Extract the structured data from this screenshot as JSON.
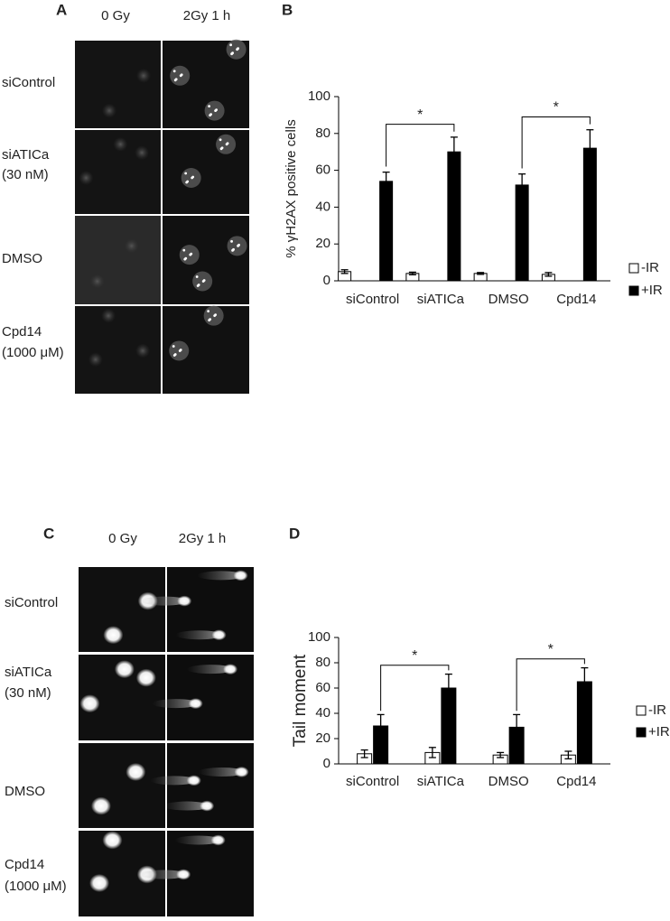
{
  "image_panels": [
    {
      "panel": "A",
      "columns": [
        "0 Gy",
        "2Gy 1 h"
      ],
      "rows": [
        [
          "siControl"
        ],
        [
          "siATICa",
          "(30 nM)"
        ],
        [
          "DMSO"
        ],
        [
          "Cpd14",
          "(1000 μM)"
        ]
      ]
    },
    {
      "panel": "C",
      "columns": [
        "0 Gy",
        "2Gy 1 h"
      ],
      "rows": [
        [
          "siControl"
        ],
        [
          "siATICa",
          "(30 nM)"
        ],
        [
          "DMSO"
        ],
        [
          "Cpd14",
          "(1000 μM)"
        ]
      ]
    }
  ],
  "chart_data": [
    {
      "type": "bar",
      "panel": "B",
      "y_label": "% γH2AX positive cells",
      "categories": [
        "siControl",
        "siATICa",
        "DMSO",
        "Cpd14"
      ],
      "series": [
        {
          "name": "-IR",
          "color": "#ffffff",
          "values": [
            5,
            4,
            4,
            3.5
          ],
          "errors": [
            1,
            0.7,
            0.5,
            1
          ]
        },
        {
          "name": "+IR",
          "color": "#000000",
          "values": [
            54,
            70,
            52,
            72
          ],
          "errors": [
            5,
            8,
            6,
            10
          ]
        }
      ],
      "ylim": [
        0,
        100
      ],
      "yticks": [
        0,
        20,
        40,
        60,
        80,
        100
      ],
      "significance": [
        {
          "label": "*",
          "between": [
            "siControl",
            "siATICa"
          ]
        },
        {
          "label": "*",
          "between": [
            "DMSO",
            "Cpd14"
          ]
        }
      ]
    },
    {
      "type": "bar",
      "panel": "D",
      "y_label": "Tail moment",
      "categories": [
        "siControl",
        "siATICa",
        "DMSO",
        "Cpd14"
      ],
      "series": [
        {
          "name": "-IR",
          "color": "#ffffff",
          "values": [
            8,
            9,
            7,
            7
          ],
          "errors": [
            3,
            4,
            2,
            3
          ]
        },
        {
          "name": "+IR",
          "color": "#000000",
          "values": [
            30,
            60,
            29,
            65
          ],
          "errors": [
            9,
            11,
            10,
            11
          ]
        }
      ],
      "ylim": [
        0,
        100
      ],
      "yticks": [
        0,
        20,
        40,
        60,
        80,
        100
      ],
      "significance": [
        {
          "label": "*",
          "between": [
            "siControl",
            "siATICa"
          ]
        },
        {
          "label": "*",
          "between": [
            "DMSO",
            "Cpd14"
          ]
        }
      ]
    }
  ]
}
